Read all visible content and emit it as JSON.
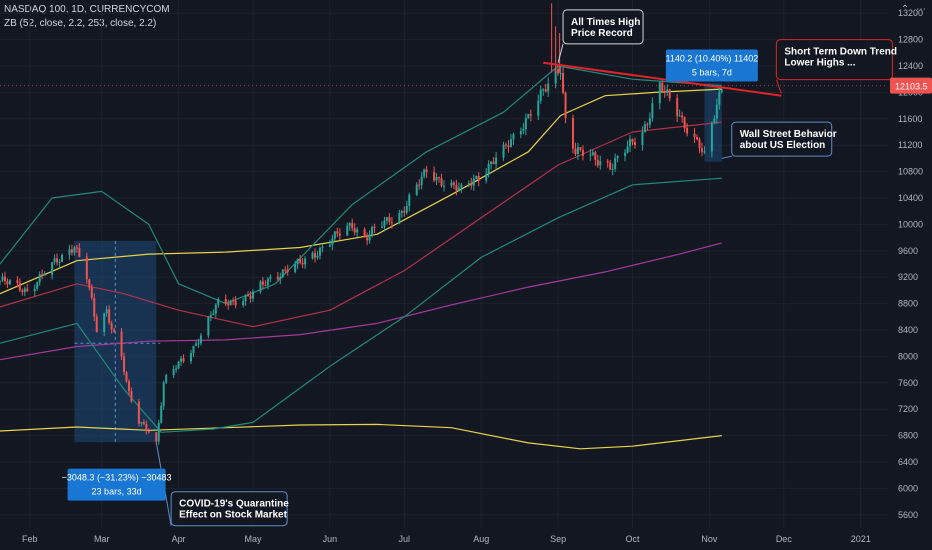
{
  "header": {
    "title": "NASDAQ 100, 1D, CURRENCYCOM",
    "indicator": "ZB (52, close, 2.2, 253, close, 2.2)",
    "chevron_icon": "chevron-up-icon",
    "menu_icon": "more-horizontal-icon"
  },
  "colors": {
    "background": "#131722",
    "up": "#26a69a",
    "down": "#ef5350",
    "ma_short": "#e8d24a",
    "ma_mid": "#b2324a",
    "ma_long": "#a43a9c",
    "band": "#1f8a7a",
    "trend": "#e0232a",
    "range_box": "#1e4a7a",
    "callout_blue": "#1976d2"
  },
  "chart_data": {
    "type": "candlestick",
    "xlabel": "",
    "ylabel": "",
    "ylim": [
      5400,
      13400
    ],
    "yticks": [
      5600,
      6000,
      6400,
      6800,
      7200,
      7600,
      8000,
      8400,
      8800,
      9200,
      9600,
      10000,
      10400,
      10800,
      11200,
      11600,
      12000,
      12400,
      12800,
      13200
    ],
    "x_range": [
      "2020-01-20",
      "2021-01-12"
    ],
    "xticks": [
      {
        "label": "Feb",
        "date": "2020-02-01"
      },
      {
        "label": "Mar",
        "date": "2020-03-01"
      },
      {
        "label": "Apr",
        "date": "2020-04-01"
      },
      {
        "label": "May",
        "date": "2020-05-01"
      },
      {
        "label": "Jun",
        "date": "2020-06-01"
      },
      {
        "label": "Jul",
        "date": "2020-07-01"
      },
      {
        "label": "Aug",
        "date": "2020-08-01"
      },
      {
        "label": "Sep",
        "date": "2020-09-01"
      },
      {
        "label": "Oct",
        "date": "2020-10-01"
      },
      {
        "label": "Nov",
        "date": "2020-11-01"
      },
      {
        "label": "Dec",
        "date": "2020-12-01"
      },
      {
        "label": "2021",
        "date": "2021-01-01"
      }
    ],
    "last_price": {
      "label": "12103.5",
      "value": 12103.5
    },
    "close_path": [
      {
        "date": "2020-01-20",
        "close": 9150
      },
      {
        "date": "2020-01-31",
        "close": 9000
      },
      {
        "date": "2020-02-19",
        "close": 9700
      },
      {
        "date": "2020-02-24",
        "close": 9200
      },
      {
        "date": "2020-02-28",
        "close": 8400
      },
      {
        "date": "2020-03-03",
        "close": 8700
      },
      {
        "date": "2020-03-09",
        "close": 8000
      },
      {
        "date": "2020-03-12",
        "close": 7400
      },
      {
        "date": "2020-03-16",
        "close": 7000
      },
      {
        "date": "2020-03-20",
        "close": 6900
      },
      {
        "date": "2020-03-23",
        "close": 6700
      },
      {
        "date": "2020-03-26",
        "close": 7600
      },
      {
        "date": "2020-04-08",
        "close": 8200
      },
      {
        "date": "2020-04-17",
        "close": 8800
      },
      {
        "date": "2020-04-30",
        "close": 8900
      },
      {
        "date": "2020-05-08",
        "close": 9200
      },
      {
        "date": "2020-05-20",
        "close": 9400
      },
      {
        "date": "2020-06-10",
        "close": 10000
      },
      {
        "date": "2020-06-15",
        "close": 9800
      },
      {
        "date": "2020-06-30",
        "close": 10200
      },
      {
        "date": "2020-07-10",
        "close": 10800
      },
      {
        "date": "2020-07-24",
        "close": 10500
      },
      {
        "date": "2020-08-10",
        "close": 11100
      },
      {
        "date": "2020-08-28",
        "close": 12100
      },
      {
        "date": "2020-09-02",
        "close": 12400
      },
      {
        "date": "2020-09-04",
        "close": 11600
      },
      {
        "date": "2020-09-08",
        "close": 11100
      },
      {
        "date": "2020-09-23",
        "close": 10900
      },
      {
        "date": "2020-10-05",
        "close": 11400
      },
      {
        "date": "2020-10-12",
        "close": 12100
      },
      {
        "date": "2020-10-19",
        "close": 11700
      },
      {
        "date": "2020-10-28",
        "close": 11200
      },
      {
        "date": "2020-10-30",
        "close": 11000
      },
      {
        "date": "2020-11-04",
        "close": 11800
      },
      {
        "date": "2020-11-06",
        "close": 12103.5
      }
    ],
    "series": [
      {
        "id": "ma-short",
        "points": [
          {
            "date": "2020-01-20",
            "value": 8950
          },
          {
            "date": "2020-02-20",
            "value": 9450
          },
          {
            "date": "2020-03-20",
            "value": 9550
          },
          {
            "date": "2020-04-20",
            "value": 9580
          },
          {
            "date": "2020-05-20",
            "value": 9650
          },
          {
            "date": "2020-06-20",
            "value": 9850
          },
          {
            "date": "2020-07-20",
            "value": 10450
          },
          {
            "date": "2020-08-20",
            "value": 11100
          },
          {
            "date": "2020-09-02",
            "value": 11650
          },
          {
            "date": "2020-09-20",
            "value": 11950
          },
          {
            "date": "2020-10-10",
            "value": 12000
          },
          {
            "date": "2020-11-06",
            "value": 12050
          }
        ]
      },
      {
        "id": "ma-mid",
        "points": [
          {
            "date": "2020-01-20",
            "value": 8750
          },
          {
            "date": "2020-02-20",
            "value": 9100
          },
          {
            "date": "2020-03-10",
            "value": 8950
          },
          {
            "date": "2020-04-01",
            "value": 8700
          },
          {
            "date": "2020-05-01",
            "value": 8450
          },
          {
            "date": "2020-06-01",
            "value": 8700
          },
          {
            "date": "2020-07-01",
            "value": 9300
          },
          {
            "date": "2020-08-01",
            "value": 10100
          },
          {
            "date": "2020-09-01",
            "value": 10900
          },
          {
            "date": "2020-10-01",
            "value": 11400
          },
          {
            "date": "2020-11-06",
            "value": 11550
          }
        ]
      },
      {
        "id": "ma-long",
        "points": [
          {
            "date": "2020-01-20",
            "value": 7950
          },
          {
            "date": "2020-02-20",
            "value": 8150
          },
          {
            "date": "2020-03-20",
            "value": 8230
          },
          {
            "date": "2020-04-20",
            "value": 8250
          },
          {
            "date": "2020-05-20",
            "value": 8330
          },
          {
            "date": "2020-06-20",
            "value": 8500
          },
          {
            "date": "2020-07-20",
            "value": 8780
          },
          {
            "date": "2020-08-20",
            "value": 9050
          },
          {
            "date": "2020-09-20",
            "value": 9280
          },
          {
            "date": "2020-10-20",
            "value": 9550
          },
          {
            "date": "2020-11-06",
            "value": 9720
          }
        ]
      },
      {
        "id": "band-lower",
        "points": [
          {
            "date": "2020-01-20",
            "value": 6870
          },
          {
            "date": "2020-02-20",
            "value": 6930
          },
          {
            "date": "2020-03-20",
            "value": 6880
          },
          {
            "date": "2020-04-20",
            "value": 6920
          },
          {
            "date": "2020-05-20",
            "value": 6960
          },
          {
            "date": "2020-06-20",
            "value": 6970
          },
          {
            "date": "2020-07-20",
            "value": 6920
          },
          {
            "date": "2020-08-20",
            "value": 6690
          },
          {
            "date": "2020-09-10",
            "value": 6600
          },
          {
            "date": "2020-10-01",
            "value": 6640
          },
          {
            "date": "2020-11-06",
            "value": 6800
          }
        ]
      },
      {
        "id": "band-upper",
        "points": [
          {
            "date": "2020-01-20",
            "value": 9400
          },
          {
            "date": "2020-02-10",
            "value": 10400
          },
          {
            "date": "2020-03-01",
            "value": 10500
          },
          {
            "date": "2020-03-20",
            "value": 10000
          },
          {
            "date": "2020-04-01",
            "value": 9100
          },
          {
            "date": "2020-04-20",
            "value": 8800
          },
          {
            "date": "2020-05-10",
            "value": 9100
          },
          {
            "date": "2020-06-10",
            "value": 10300
          },
          {
            "date": "2020-07-10",
            "value": 11100
          },
          {
            "date": "2020-08-10",
            "value": 11700
          },
          {
            "date": "2020-09-01",
            "value": 12400
          },
          {
            "date": "2020-10-01",
            "value": 12200
          },
          {
            "date": "2020-11-06",
            "value": 12100
          }
        ]
      },
      {
        "id": "band-inner",
        "points": [
          {
            "date": "2020-01-20",
            "value": 8200
          },
          {
            "date": "2020-02-20",
            "value": 8500
          },
          {
            "date": "2020-03-10",
            "value": 7500
          },
          {
            "date": "2020-03-25",
            "value": 6850
          },
          {
            "date": "2020-04-15",
            "value": 6900
          },
          {
            "date": "2020-05-01",
            "value": 7000
          },
          {
            "date": "2020-06-01",
            "value": 7850
          },
          {
            "date": "2020-07-01",
            "value": 8600
          },
          {
            "date": "2020-08-01",
            "value": 9500
          },
          {
            "date": "2020-09-01",
            "value": 10100
          },
          {
            "date": "2020-10-01",
            "value": 10600
          },
          {
            "date": "2020-11-06",
            "value": 10700
          }
        ]
      }
    ],
    "trendline": {
      "start": {
        "date": "2020-08-26",
        "value": 12450
      },
      "end": {
        "date": "2020-11-30",
        "value": 11950
      }
    },
    "range_boxes": [
      {
        "id": "covid-range",
        "start": "2020-02-19",
        "end": "2020-03-23",
        "high": 9750,
        "low": 6700
      },
      {
        "id": "election-range",
        "start": "2020-10-30",
        "end": "2020-11-06",
        "high": 12140,
        "low": 10950
      }
    ],
    "annotations": {
      "all_time_high": {
        "title": "All Times High",
        "subtitle": "Price Record",
        "date": "2020-09-03",
        "value": 13250
      },
      "short_term": {
        "title": "Short Term Down Trend",
        "subtitle": "Lower Highs ...",
        "date": "2020-11-28",
        "value": 12800
      },
      "wall_street": {
        "title": "Wall Street Behavior",
        "subtitle": "about US Election",
        "date": "2020-11-10",
        "value": 11550
      },
      "covid": {
        "title": "COVID-19's Quarantine",
        "subtitle": "Effect on Stock Market",
        "date": "2020-03-29",
        "value": 5950
      },
      "range_down": {
        "line1": "−3048.3 (−31.23%) −30483",
        "line2": "23 bars, 33d",
        "date": "2020-03-07",
        "value": 6300
      },
      "range_up": {
        "line1": "1140.2 (10.40%) 11402",
        "line2": "5 bars, 7d",
        "date": "2020-11-02",
        "value": 12650
      }
    }
  }
}
